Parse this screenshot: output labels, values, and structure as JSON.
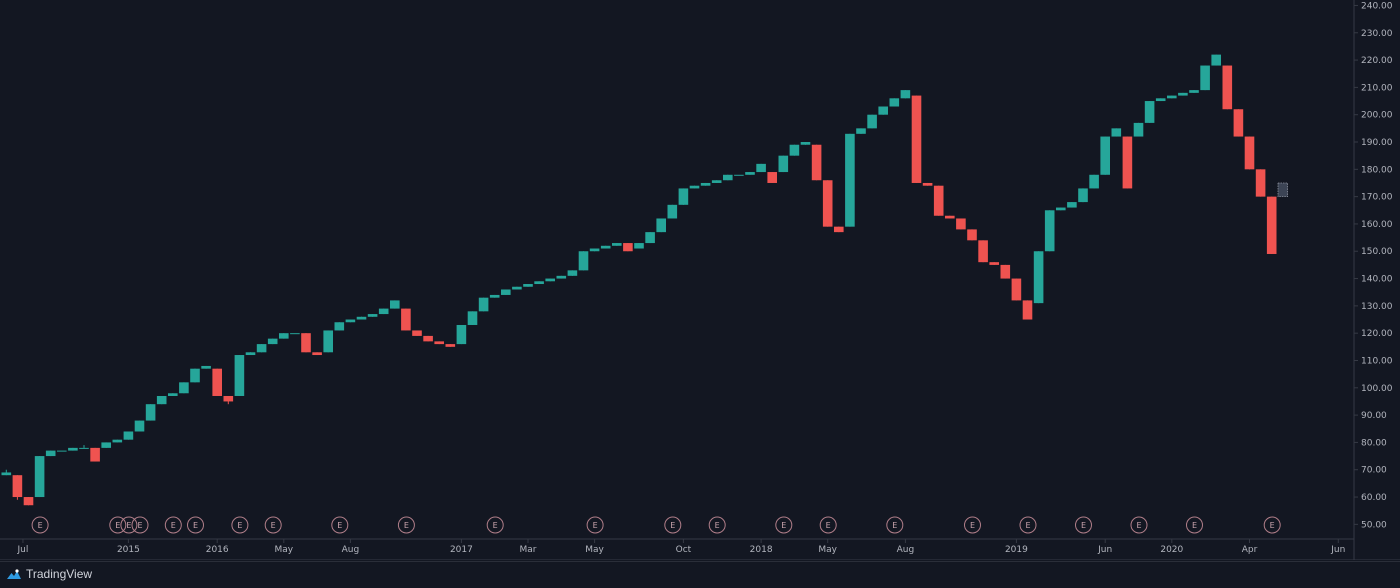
{
  "footer": {
    "brand": "TradingView"
  },
  "chart_data": {
    "type": "candlestick",
    "ylim": [
      45,
      242
    ],
    "yticks": [
      50,
      60,
      70,
      80,
      90,
      100,
      110,
      120,
      130,
      140,
      150,
      160,
      170,
      180,
      190,
      200,
      210,
      220,
      230,
      240
    ],
    "ytick_labels": [
      "50.00",
      "60.00",
      "70.00",
      "80.00",
      "90.00",
      "100.00",
      "110.00",
      "120.00",
      "130.00",
      "140.00",
      "150.00",
      "160.00",
      "170.00",
      "180.00",
      "190.00",
      "200.00",
      "210.00",
      "220.00",
      "230.00",
      "240.00"
    ],
    "x_labels": [
      {
        "i": 1.5,
        "label": "Jul"
      },
      {
        "i": 11,
        "label": "2015"
      },
      {
        "i": 19,
        "label": "2016"
      },
      {
        "i": 25,
        "label": "May"
      },
      {
        "i": 31,
        "label": "Aug"
      },
      {
        "i": 41,
        "label": "2017"
      },
      {
        "i": 47,
        "label": "Mar"
      },
      {
        "i": 53,
        "label": "May"
      },
      {
        "i": 61,
        "label": "Oct"
      },
      {
        "i": 68,
        "label": "2018"
      },
      {
        "i": 74,
        "label": "May"
      },
      {
        "i": 81,
        "label": "Aug"
      },
      {
        "i": 91,
        "label": "2019"
      },
      {
        "i": 99,
        "label": "Jun"
      },
      {
        "i": 105,
        "label": "2020"
      },
      {
        "i": 112,
        "label": "Apr"
      },
      {
        "i": 120,
        "label": "Jun"
      }
    ],
    "earnings_markers": [
      3,
      10,
      11,
      12,
      15,
      17,
      21,
      24,
      30,
      36,
      44,
      53,
      60,
      64,
      70,
      74,
      80,
      87,
      92,
      97,
      102,
      107,
      114
    ],
    "earnings_label": "E",
    "candles": [
      [
        68,
        70,
        68,
        69
      ],
      [
        68,
        68,
        59,
        60
      ],
      [
        60,
        60,
        57,
        57
      ],
      [
        60,
        75,
        60,
        75
      ],
      [
        75,
        77,
        75,
        77
      ],
      [
        77,
        77,
        77,
        77
      ],
      [
        77,
        78,
        77,
        78
      ],
      [
        78,
        79,
        78,
        78
      ],
      [
        78,
        78,
        73,
        73
      ],
      [
        78,
        80,
        78,
        80
      ],
      [
        80,
        81,
        80,
        81
      ],
      [
        81,
        84,
        81,
        84
      ],
      [
        84,
        88,
        84,
        88
      ],
      [
        88,
        94,
        88,
        94
      ],
      [
        94,
        97,
        94,
        97
      ],
      [
        97,
        98,
        97,
        98
      ],
      [
        98,
        102,
        98,
        102
      ],
      [
        102,
        107,
        102,
        107
      ],
      [
        107,
        108,
        107,
        108
      ],
      [
        107,
        107,
        97,
        97
      ],
      [
        97,
        97,
        94,
        95
      ],
      [
        97,
        112,
        97,
        112
      ],
      [
        112,
        113,
        112,
        113
      ],
      [
        113,
        116,
        113,
        116
      ],
      [
        116,
        118,
        116,
        118
      ],
      [
        118,
        120,
        118,
        120
      ],
      [
        120,
        120,
        120,
        120
      ],
      [
        120,
        120,
        113,
        113
      ],
      [
        113,
        113,
        112,
        112
      ],
      [
        113,
        121,
        113,
        121
      ],
      [
        121,
        124,
        121,
        124
      ],
      [
        124,
        125,
        124,
        125
      ],
      [
        125,
        126,
        125,
        126
      ],
      [
        126,
        127,
        126,
        127
      ],
      [
        127,
        129,
        127,
        129
      ],
      [
        129,
        132,
        129,
        132
      ],
      [
        129,
        129,
        121,
        121
      ],
      [
        121,
        121,
        119,
        119
      ],
      [
        119,
        119,
        117,
        117
      ],
      [
        117,
        117,
        116,
        116
      ],
      [
        116,
        116,
        115,
        115
      ],
      [
        116,
        123,
        116,
        123
      ],
      [
        123,
        128,
        123,
        128
      ],
      [
        128,
        133,
        128,
        133
      ],
      [
        133,
        134,
        133,
        134
      ],
      [
        134,
        136,
        134,
        136
      ],
      [
        136,
        137,
        136,
        137
      ],
      [
        137,
        138,
        137,
        138
      ],
      [
        138,
        139,
        138,
        139
      ],
      [
        139,
        140,
        139,
        140
      ],
      [
        140,
        141,
        140,
        141
      ],
      [
        141,
        143,
        141,
        143
      ],
      [
        143,
        150,
        143,
        150
      ],
      [
        150,
        151,
        150,
        151
      ],
      [
        151,
        152,
        151,
        152
      ],
      [
        152,
        153,
        152,
        153
      ],
      [
        153,
        153,
        150,
        150
      ],
      [
        151,
        153,
        151,
        153
      ],
      [
        153,
        157,
        153,
        157
      ],
      [
        157,
        162,
        157,
        162
      ],
      [
        162,
        167,
        162,
        167
      ],
      [
        167,
        173,
        167,
        173
      ],
      [
        173,
        174,
        173,
        174
      ],
      [
        174,
        175,
        174,
        175
      ],
      [
        175,
        176,
        175,
        176
      ],
      [
        176,
        178,
        176,
        178
      ],
      [
        178,
        178,
        178,
        178
      ],
      [
        178,
        179,
        178,
        179
      ],
      [
        179,
        182,
        179,
        182
      ],
      [
        179,
        179,
        175,
        175
      ],
      [
        179,
        185,
        179,
        185
      ],
      [
        185,
        189,
        185,
        189
      ],
      [
        189,
        190,
        189,
        190
      ],
      [
        189,
        189,
        176,
        176
      ],
      [
        176,
        176,
        159,
        159
      ],
      [
        159,
        159,
        157,
        157
      ],
      [
        159,
        193,
        159,
        193
      ],
      [
        193,
        195,
        193,
        195
      ],
      [
        195,
        200,
        195,
        200
      ],
      [
        200,
        203,
        200,
        203
      ],
      [
        203,
        206,
        203,
        206
      ],
      [
        206,
        209,
        206,
        209
      ],
      [
        207,
        207,
        175,
        175
      ],
      [
        175,
        175,
        174,
        174
      ],
      [
        174,
        174,
        163,
        163
      ],
      [
        163,
        163,
        162,
        162
      ],
      [
        162,
        162,
        158,
        158
      ],
      [
        158,
        158,
        154,
        154
      ],
      [
        154,
        154,
        146,
        146
      ],
      [
        146,
        146,
        145,
        145
      ],
      [
        145,
        145,
        140,
        140
      ],
      [
        140,
        140,
        132,
        132
      ],
      [
        132,
        132,
        125,
        125
      ],
      [
        131,
        150,
        131,
        150
      ],
      [
        150,
        165,
        150,
        165
      ],
      [
        165,
        166,
        165,
        166
      ],
      [
        166,
        168,
        166,
        168
      ],
      [
        168,
        173,
        168,
        173
      ],
      [
        173,
        178,
        173,
        178
      ],
      [
        178,
        192,
        178,
        192
      ],
      [
        192,
        195,
        192,
        195
      ],
      [
        192,
        192,
        173,
        173
      ],
      [
        192,
        197,
        192,
        197
      ],
      [
        197,
        205,
        197,
        205
      ],
      [
        205,
        206,
        205,
        206
      ],
      [
        206,
        207,
        206,
        207
      ],
      [
        207,
        208,
        207,
        208
      ],
      [
        208,
        209,
        208,
        209
      ],
      [
        209,
        218,
        209,
        218
      ],
      [
        218,
        222,
        218,
        222
      ],
      [
        218,
        218,
        202,
        202
      ],
      [
        202,
        202,
        192,
        192
      ],
      [
        192,
        192,
        180,
        180
      ],
      [
        180,
        180,
        170,
        170
      ],
      [
        170,
        170,
        149,
        149
      ],
      [
        170,
        175,
        170,
        175
      ]
    ],
    "colors": {
      "up": "#26a69a",
      "down": "#ef5350",
      "last": "#3c4455",
      "background": "#131722",
      "axis_line": "#363a45"
    }
  }
}
